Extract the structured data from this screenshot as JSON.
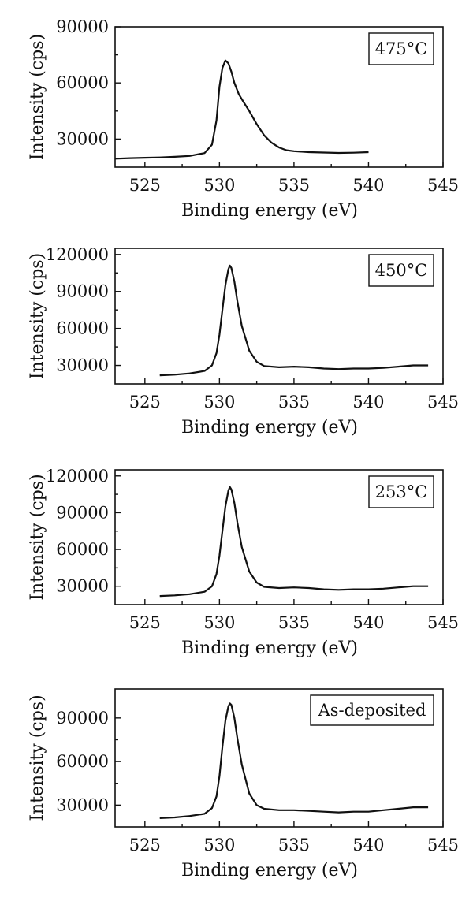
{
  "chart_data": [
    {
      "type": "line",
      "annotation": "475°C",
      "xlabel": "Binding energy (eV)",
      "ylabel": "Intensity (cps)",
      "xlim": [
        523,
        545
      ],
      "ylim": [
        15000,
        90000
      ],
      "xticks": [
        525,
        530,
        535,
        540,
        545
      ],
      "yticks": [
        30000,
        60000,
        90000
      ],
      "series": [
        {
          "x": [
            523,
            524,
            525,
            526,
            527,
            528,
            529,
            529.5,
            529.8,
            530.0,
            530.2,
            530.4,
            530.6,
            530.8,
            531.0,
            531.3,
            531.6,
            532.0,
            532.5,
            533.0,
            533.5,
            534.0,
            534.5,
            535,
            536,
            537,
            538,
            539,
            540
          ],
          "y": [
            19500,
            19800,
            20000,
            20200,
            20500,
            21000,
            22500,
            27000,
            40000,
            58000,
            68000,
            72000,
            70500,
            66000,
            60000,
            54000,
            50000,
            45000,
            38000,
            32000,
            28000,
            25500,
            24000,
            23500,
            23000,
            22800,
            22600,
            22700,
            23000
          ]
        }
      ]
    },
    {
      "type": "line",
      "annotation": "450°C",
      "xlabel": "Binding energy (eV)",
      "ylabel": "Intensity (cps)",
      "xlim": [
        523,
        545
      ],
      "ylim": [
        15000,
        125000
      ],
      "xticks": [
        525,
        530,
        535,
        540,
        545
      ],
      "yticks": [
        30000,
        60000,
        90000,
        120000
      ],
      "series": [
        {
          "x": [
            526,
            527,
            528,
            529,
            529.5,
            529.8,
            530.0,
            530.2,
            530.4,
            530.6,
            530.7,
            530.8,
            531.0,
            531.2,
            531.5,
            532.0,
            532.5,
            533.0,
            534,
            535,
            536,
            537,
            538,
            539,
            540,
            541,
            542,
            543,
            544
          ],
          "y": [
            22000,
            22500,
            23500,
            25500,
            30000,
            40000,
            55000,
            75000,
            95000,
            108000,
            111000,
            109000,
            98000,
            82000,
            62000,
            42000,
            33000,
            29500,
            28500,
            29000,
            28500,
            27500,
            27000,
            27500,
            27500,
            28000,
            29000,
            30000,
            30000
          ]
        }
      ]
    },
    {
      "type": "line",
      "annotation": "253°C",
      "xlabel": "Binding energy (eV)",
      "ylabel": "Intensity (cps)",
      "xlim": [
        523,
        545
      ],
      "ylim": [
        15000,
        125000
      ],
      "xticks": [
        525,
        530,
        535,
        540,
        545
      ],
      "yticks": [
        30000,
        60000,
        90000,
        120000
      ],
      "series": [
        {
          "x": [
            526,
            527,
            528,
            529,
            529.5,
            529.8,
            530.0,
            530.2,
            530.4,
            530.6,
            530.7,
            530.8,
            531.0,
            531.2,
            531.5,
            532.0,
            532.5,
            533.0,
            534,
            535,
            536,
            537,
            538,
            539,
            540,
            541,
            542,
            543,
            544
          ],
          "y": [
            22000,
            22500,
            23500,
            25500,
            30000,
            40000,
            55000,
            75000,
            95000,
            108000,
            111000,
            109000,
            98000,
            82000,
            62000,
            42000,
            33000,
            29500,
            28500,
            29000,
            28500,
            27500,
            27000,
            27500,
            27500,
            28000,
            29000,
            30000,
            30000
          ]
        }
      ]
    },
    {
      "type": "line",
      "annotation": "As-deposited",
      "xlabel": "Binding energy (eV)",
      "ylabel": "Intensity (cps)",
      "xlim": [
        523,
        545
      ],
      "ylim": [
        15000,
        110000
      ],
      "xticks": [
        525,
        530,
        535,
        540,
        545
      ],
      "yticks": [
        30000,
        60000,
        90000
      ],
      "series": [
        {
          "x": [
            526,
            527,
            528,
            529,
            529.5,
            529.8,
            530.0,
            530.2,
            530.4,
            530.6,
            530.7,
            530.8,
            531.0,
            531.2,
            531.5,
            532.0,
            532.5,
            533.0,
            534,
            535,
            536,
            537,
            538,
            539,
            540,
            541,
            542,
            543,
            544
          ],
          "y": [
            21000,
            21500,
            22500,
            24000,
            28000,
            36000,
            50000,
            70000,
            88000,
            98000,
            100000,
            99000,
            90000,
            76000,
            58000,
            38000,
            30000,
            27500,
            26500,
            26500,
            26000,
            25500,
            25000,
            25500,
            25500,
            26500,
            27500,
            28500,
            28500
          ]
        }
      ]
    }
  ]
}
